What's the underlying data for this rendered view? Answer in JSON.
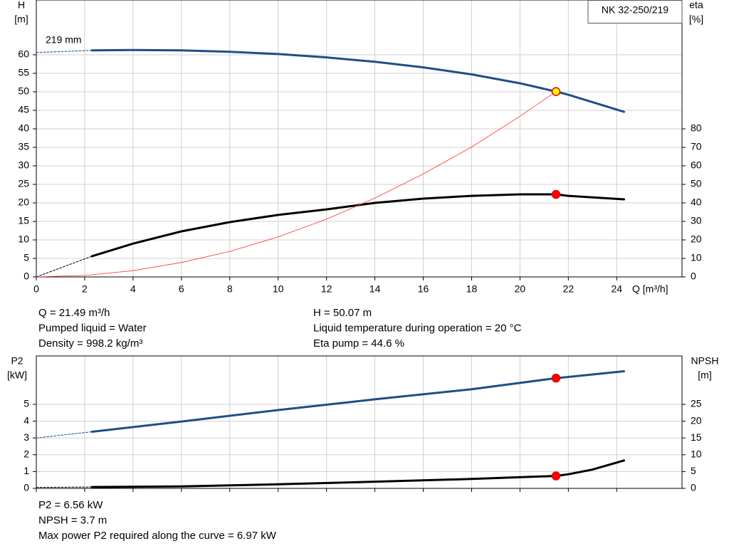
{
  "chart_data": [
    {
      "type": "line",
      "title": "NK 32-250/219",
      "xlabel": "Q [m³/h]",
      "ylabel": "H",
      "yunit": "[m]",
      "y2label": "eta",
      "y2unit": "[%]",
      "xlim": [
        0,
        26.7
      ],
      "xticks": [
        0,
        2,
        4,
        6,
        8,
        10,
        12,
        14,
        16,
        18,
        20,
        22,
        24
      ],
      "xtick_labels": true,
      "ylim": [
        0,
        74.8
      ],
      "yticks": [
        0,
        5,
        10,
        15,
        20,
        25,
        30,
        35,
        40,
        45,
        50,
        55,
        60
      ],
      "y2lim": [
        0,
        149.6
      ],
      "y2ticks": [
        0,
        10,
        20,
        30,
        40,
        50,
        60,
        70,
        80
      ],
      "grid": true,
      "curve_label": "219 mm",
      "series": [
        {
          "color": "#1f4e86",
          "dashed": true,
          "width": 1,
          "x": [
            0,
            2.3
          ],
          "values": [
            60.6,
            61.2
          ]
        },
        {
          "color": "#1f4e86",
          "dashed": false,
          "width": 3,
          "x": [
            2.3,
            4,
            6,
            8,
            10,
            12,
            14,
            16,
            18,
            20,
            21.49,
            22,
            24.3
          ],
          "values": [
            61.2,
            61.3,
            61.2,
            60.8,
            60.2,
            59.3,
            58.1,
            56.6,
            54.7,
            52.3,
            50.07,
            49.2,
            44.6
          ]
        },
        {
          "color": "#000000",
          "dashed": true,
          "width": 1,
          "axis": "y2",
          "x": [
            0,
            2.3
          ],
          "values": [
            0,
            11.2
          ]
        },
        {
          "color": "#000000",
          "dashed": false,
          "width": 3,
          "axis": "y2",
          "x": [
            2.3,
            4,
            6,
            8,
            10,
            12,
            14,
            16,
            18,
            20,
            21.49,
            22,
            24.3
          ],
          "values": [
            11.2,
            18,
            24.6,
            29.6,
            33.5,
            36.5,
            40,
            42.3,
            43.8,
            44.6,
            44.6,
            43.8,
            41.9
          ]
        },
        {
          "color": "#ff3030",
          "dashed": false,
          "width": 0.8,
          "x": [
            0,
            2,
            4,
            6,
            8,
            10,
            12,
            14,
            16,
            18,
            20,
            21.49
          ],
          "values": [
            0,
            0.4,
            1.7,
            3.9,
            6.9,
            10.8,
            15.6,
            21.3,
            27.8,
            35.1,
            43.4,
            50.07
          ]
        }
      ],
      "points": [
        {
          "x": 21.49,
          "y": 50.07,
          "fill": "#ffff00",
          "stroke": "#e00000"
        },
        {
          "x": 21.49,
          "y": 44.6,
          "axis": "y2",
          "fill": "#ff0000",
          "stroke": "#e00000"
        }
      ],
      "info": [
        [
          "Q = 21.49 m³/h",
          "Pumped liquid = Water",
          "Density = 998.2 kg/m³"
        ],
        [
          "H = 50.07 m",
          "Liquid temperature during operation = 20 °C",
          "Eta pump = 44.6 %"
        ]
      ]
    },
    {
      "type": "line",
      "ylabel": "P2",
      "yunit": "[kW]",
      "y2label": "NPSH",
      "y2unit": "[m]",
      "xlim": [
        0,
        26.7
      ],
      "xticks": [
        0,
        2,
        4,
        6,
        8,
        10,
        12,
        14,
        16,
        18,
        20,
        22,
        24
      ],
      "xtick_labels": false,
      "ylim": [
        0,
        7.88
      ],
      "yticks": [
        0,
        1,
        2,
        3,
        4,
        5
      ],
      "y2lim": [
        0,
        39.4
      ],
      "y2ticks": [
        0,
        5,
        10,
        15,
        20,
        25
      ],
      "grid": true,
      "series": [
        {
          "color": "#1f4e86",
          "dashed": true,
          "width": 1,
          "x": [
            0,
            2.3
          ],
          "values": [
            3.0,
            3.37
          ]
        },
        {
          "color": "#1f4e86",
          "dashed": false,
          "width": 3,
          "x": [
            2.3,
            6,
            10,
            14,
            18,
            21.49,
            24.3
          ],
          "values": [
            3.37,
            3.98,
            4.66,
            5.3,
            5.9,
            6.56,
            6.97
          ]
        },
        {
          "color": "#000000",
          "dashed": true,
          "width": 1,
          "axis": "y2",
          "x": [
            0,
            2.3
          ],
          "values": [
            0.3,
            0.4
          ]
        },
        {
          "color": "#000000",
          "dashed": false,
          "width": 3,
          "axis": "y2",
          "x": [
            2.3,
            6,
            10,
            14,
            18,
            21.49,
            22,
            23,
            24.3
          ],
          "values": [
            0.4,
            0.6,
            1.2,
            2.0,
            2.8,
            3.7,
            4.2,
            5.6,
            8.3
          ]
        }
      ],
      "points": [
        {
          "x": 21.49,
          "y": 6.56,
          "fill": "#ff0000",
          "stroke": "#e00000"
        },
        {
          "x": 21.49,
          "y": 3.7,
          "axis": "y2",
          "fill": "#ff0000",
          "stroke": "#e00000"
        }
      ],
      "info": [
        [
          "P2 = 6.56 kW",
          "NPSH = 3.7 m",
          "Max power P2 required along the curve = 6.97 kW"
        ]
      ]
    }
  ]
}
